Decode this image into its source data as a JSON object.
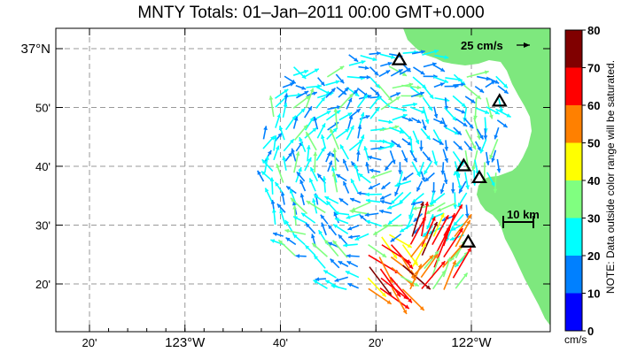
{
  "title": "MNTY Totals: 01–Jan–2011 00:00 GMT+0.000",
  "map": {
    "lon_range": [
      -123.4,
      -121.8
    ],
    "lat_range": [
      36.3,
      37.05
    ],
    "x_ticks": [
      {
        "lon": -123.3333,
        "label": "20'",
        "major": false
      },
      {
        "lon": -123.0,
        "label": "123°W",
        "major": true
      },
      {
        "lon": -122.6667,
        "label": "40'",
        "major": false
      },
      {
        "lon": -122.3333,
        "label": "20'",
        "major": false
      },
      {
        "lon": -122.0,
        "label": "122°W",
        "major": true
      }
    ],
    "y_ticks": [
      {
        "lat": 37.0,
        "label": "37°N",
        "major": true
      },
      {
        "lat": 36.8333,
        "label": "50'",
        "major": false
      },
      {
        "lat": 36.6667,
        "label": "40'",
        "major": false
      },
      {
        "lat": 36.5,
        "label": "30'",
        "major": false
      },
      {
        "lat": 36.3333,
        "label": "20'",
        "major": false
      }
    ],
    "reference_vector_label": "25 cm/s",
    "scale_bar_label": "10 km",
    "land_color": "#7ee87e",
    "stations": [
      {
        "lon": -122.2517,
        "lat": 36.9683
      },
      {
        "lon": -121.9017,
        "lat": 36.8512
      },
      {
        "lon": -122.0267,
        "lat": 36.6679
      },
      {
        "lon": -121.9721,
        "lat": 36.6342
      },
      {
        "lon": -122.011,
        "lat": 36.4518
      }
    ]
  },
  "colorbar": {
    "min": 0,
    "max": 80,
    "unit": "cm/s",
    "ticks": [
      "0",
      "10",
      "20",
      "30",
      "40",
      "50",
      "60",
      "70",
      "80"
    ],
    "colors": [
      "#0000ff",
      "#0080ff",
      "#00ffff",
      "#80ff80",
      "#ffff00",
      "#ff8000",
      "#ff0000",
      "#800000"
    ],
    "note": "NOTE: Data outside color range will be saturated."
  }
}
